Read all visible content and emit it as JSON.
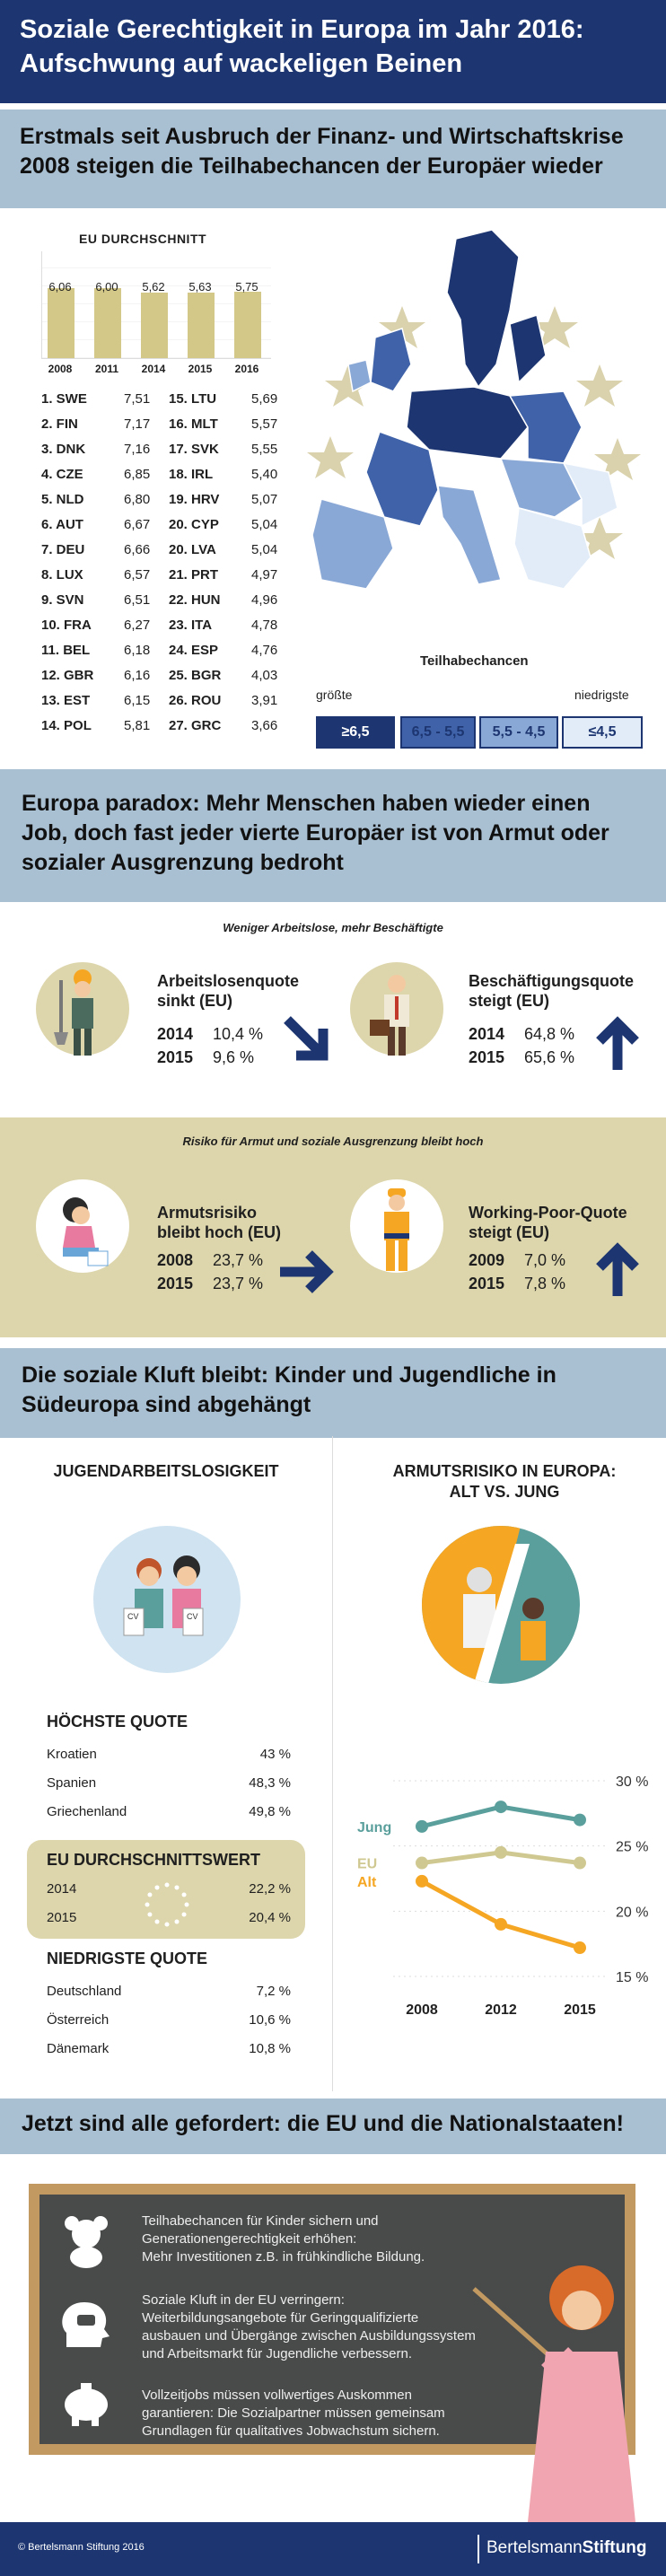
{
  "header": {
    "line1": "Soziale Gerechtigkeit in Europa im Jahr 2016:",
    "line2": "Aufschwung auf wackeligen Beinen"
  },
  "section1": {
    "line1": "Erstmals seit Ausbruch der Finanz- und Wirtschaftskrise",
    "line2": "2008 steigen die Teilhabechancen der Europäer wieder",
    "eu_title": "EU DURCHSCHNITT",
    "legend_title": "Teilhabechancen",
    "legend_left": "größte",
    "legend_right": "niedrigste",
    "legend_boxes": [
      "≥6,5",
      "6,5 - 5,5",
      "5,5 - 4,5",
      "≤4,5"
    ],
    "legend_colors": [
      "#1d3671",
      "#3f62a8",
      "#8aa8d6",
      "#e2ecf8"
    ]
  },
  "chart_data": {
    "type": "bar",
    "title": "EU DURCHSCHNITT",
    "categories": [
      "2008",
      "2011",
      "2014",
      "2015",
      "2016"
    ],
    "values": [
      6.06,
      6.0,
      5.62,
      5.63,
      5.75
    ],
    "value_labels": [
      "6,06",
      "6,00",
      "5,62",
      "5,63",
      "5,75"
    ],
    "ylim": [
      0,
      6.5
    ],
    "color": "#d4c888"
  },
  "ranking_left": [
    {
      "r": "1. SWE",
      "v": "7,51"
    },
    {
      "r": "2. FIN",
      "v": "7,17"
    },
    {
      "r": "3. DNK",
      "v": "7,16"
    },
    {
      "r": "4. CZE",
      "v": "6,85"
    },
    {
      "r": "5. NLD",
      "v": "6,80"
    },
    {
      "r": "6. AUT",
      "v": "6,67"
    },
    {
      "r": "7. DEU",
      "v": "6,66"
    },
    {
      "r": "8. LUX",
      "v": "6,57"
    },
    {
      "r": "9. SVN",
      "v": "6,51"
    },
    {
      "r": "10. FRA",
      "v": "6,27"
    },
    {
      "r": "11. BEL",
      "v": "6,18"
    },
    {
      "r": "12. GBR",
      "v": "6,16"
    },
    {
      "r": "13. EST",
      "v": "6,15"
    },
    {
      "r": "14. POL",
      "v": "5,81"
    }
  ],
  "ranking_right": [
    {
      "r": "15. LTU",
      "v": "5,69"
    },
    {
      "r": "16. MLT",
      "v": "5,57"
    },
    {
      "r": "17. SVK",
      "v": "5,55"
    },
    {
      "r": "18. IRL",
      "v": "5,40"
    },
    {
      "r": "19. HRV",
      "v": "5,07"
    },
    {
      "r": "20. CYP",
      "v": "5,04"
    },
    {
      "r": "20. LVA",
      "v": "5,04"
    },
    {
      "r": "21. PRT",
      "v": "4,97"
    },
    {
      "r": "22. HUN",
      "v": "4,96"
    },
    {
      "r": "23. ITA",
      "v": "4,78"
    },
    {
      "r": "24. ESP",
      "v": "4,76"
    },
    {
      "r": "25. BGR",
      "v": "4,03"
    },
    {
      "r": "26. ROU",
      "v": "3,91"
    },
    {
      "r": "27. GRC",
      "v": "3,66"
    }
  ],
  "section2": {
    "line1": "Europa paradox: Mehr Menschen haben wieder einen",
    "line2": "Job, doch fast jeder vierte Europäer ist von Armut oder",
    "line3": "sozialer Ausgrenzung bedroht",
    "sub1": "Weniger Arbeitslose, mehr Beschäftigte",
    "sub2": "Risiko für Armut und soziale Ausgrenzung bleibt hoch",
    "unemp": {
      "t1": "Arbeitslosenquote",
      "t2": "sinkt (EU)",
      "y1": "2014",
      "v1": "10,4 %",
      "y2": "2015",
      "v2": "9,6 %"
    },
    "emp": {
      "t1": "Beschäftigungsquote",
      "t2": "steigt (EU)",
      "y1": "2014",
      "v1": "64,8 %",
      "y2": "2015",
      "v2": "65,6 %"
    },
    "poverty": {
      "t1": "Armutsrisiko",
      "t2": "bleibt hoch (EU)",
      "y1": "2008",
      "v1": "23,7 %",
      "y2": "2015",
      "v2": "23,7 %"
    },
    "workpoor": {
      "t1": "Working-Poor-Quote",
      "t2": "steigt (EU)",
      "y1": "2009",
      "v1": "7,0 %",
      "y2": "2015",
      "v2": "7,8 %"
    }
  },
  "section3": {
    "line1": "Die soziale Kluft bleibt: Kinder und Jugendliche in",
    "line2": "Südeuropa sind abgehängt",
    "left_title": "JUGENDARBEITSLOSIGKEIT",
    "right_title1": "ARMUTSRISIKO IN EUROPA:",
    "right_title2": "ALT VS. JUNG",
    "high_title": "HÖCHSTE QUOTE",
    "high": [
      {
        "c": "Kroatien",
        "v": "43 %"
      },
      {
        "c": "Spanien",
        "v": "48,3 %"
      },
      {
        "c": "Griechenland",
        "v": "49,8 %"
      }
    ],
    "eu_title": "EU DURCHSCHNITTSWERT",
    "eu": [
      {
        "c": "2014",
        "v": "22,2 %"
      },
      {
        "c": "2015",
        "v": "20,4 %"
      }
    ],
    "low_title": "NIEDRIGSTE QUOTE",
    "low": [
      {
        "c": "Deutschland",
        "v": "7,2 %"
      },
      {
        "c": "Österreich",
        "v": "10,6 %"
      },
      {
        "c": "Dänemark",
        "v": "10,8 %"
      }
    ],
    "cv_label": "CV"
  },
  "line_chart": {
    "type": "line",
    "x": [
      "2008",
      "2012",
      "2015"
    ],
    "y_ticks": [
      "30 %",
      "25 %",
      "20 %",
      "15 %"
    ],
    "y_tick_values": [
      30,
      25,
      20,
      15
    ],
    "ylim": [
      15,
      30
    ],
    "series": [
      {
        "name": "Jung",
        "values": [
          26.5,
          28,
          27
        ],
        "color": "#5a9f9c"
      },
      {
        "name": "EU",
        "values": [
          23.7,
          24.5,
          23.7
        ],
        "color": "#cfc891"
      },
      {
        "name": "Alt",
        "values": [
          22.3,
          19.0,
          17.2
        ],
        "color": "#f5a623"
      }
    ]
  },
  "section4": {
    "title": "Jetzt sind alle gefordert: die EU und die Nationalstaaten!",
    "items": [
      {
        "icon": "teddy-bear-icon",
        "l1": "Teilhabechancen für Kinder sichern und",
        "l2": "Generationengerechtigkeit erhöhen:",
        "l3": "Mehr Investitionen z.B. in frühkindliche Bildung.",
        "l4": ""
      },
      {
        "icon": "head-speech-icon",
        "l1": "Soziale Kluft in der EU verringern:",
        "l2": "Weiterbildungsangebote für Geringqualifizierte",
        "l3": "ausbauen und Übergänge zwischen Ausbildungssystem",
        "l4": "und Arbeitsmarkt für Jugendliche verbessern."
      },
      {
        "icon": "piggy-bank-icon",
        "l1": "Vollzeitjobs müssen vollwertiges Auskommen",
        "l2": "garantieren: Die Sozialpartner müssen gemeinsam",
        "l3": "Grundlagen für qualitatives Jobwachstum sichern.",
        "l4": ""
      }
    ]
  },
  "footer": {
    "copyright": "© Bertelsmann Stiftung 2016",
    "logo_a": "Bertelsmann",
    "logo_b": "Stiftung"
  },
  "colors": {
    "navy": "#1d3671",
    "light_band": "#a9bfd2",
    "beige": "#ddd6ac",
    "orange": "#f5a623"
  }
}
